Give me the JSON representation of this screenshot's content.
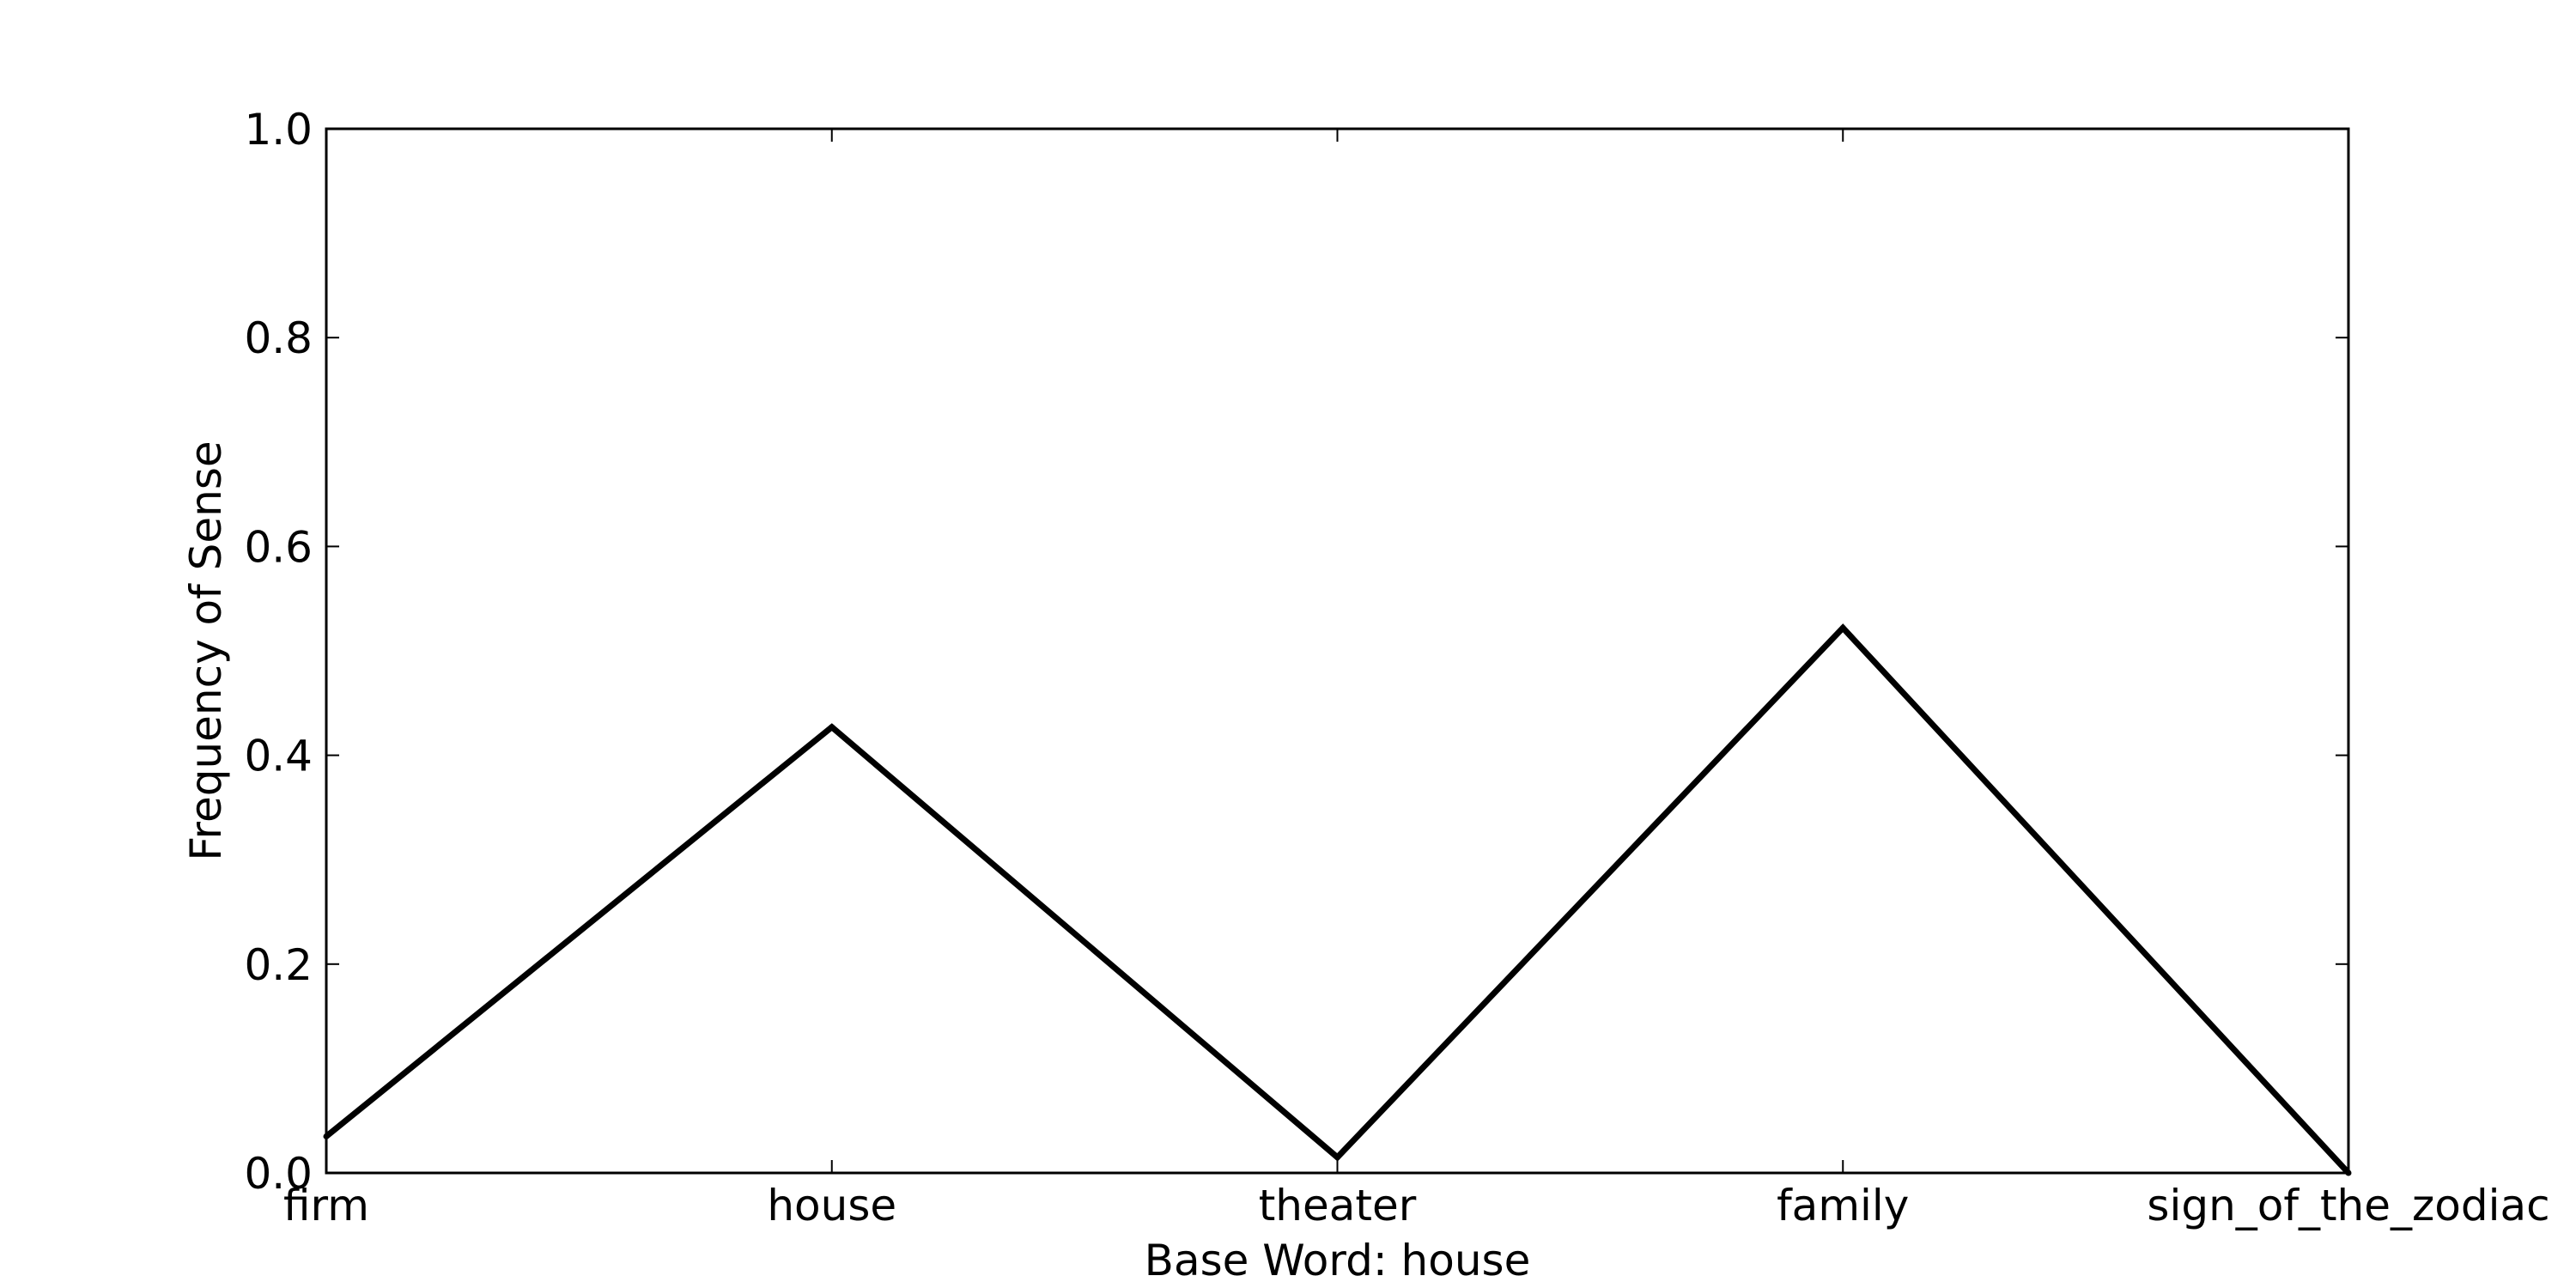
{
  "chart_data": {
    "type": "line",
    "title": "",
    "xlabel": "Base Word: house",
    "ylabel": "Frequency of Sense",
    "categories": [
      "firm",
      "house",
      "theater",
      "family",
      "sign_of_the_zodiac"
    ],
    "series": [
      {
        "values": [
          0.035,
          0.427,
          0.015,
          0.522,
          0.0
        ]
      }
    ],
    "ylim": [
      0.0,
      1.0
    ],
    "yticks": [
      "0.0",
      "0.2",
      "0.4",
      "0.6",
      "0.8",
      "1.0"
    ],
    "grid": false,
    "line_color": "#000000"
  }
}
